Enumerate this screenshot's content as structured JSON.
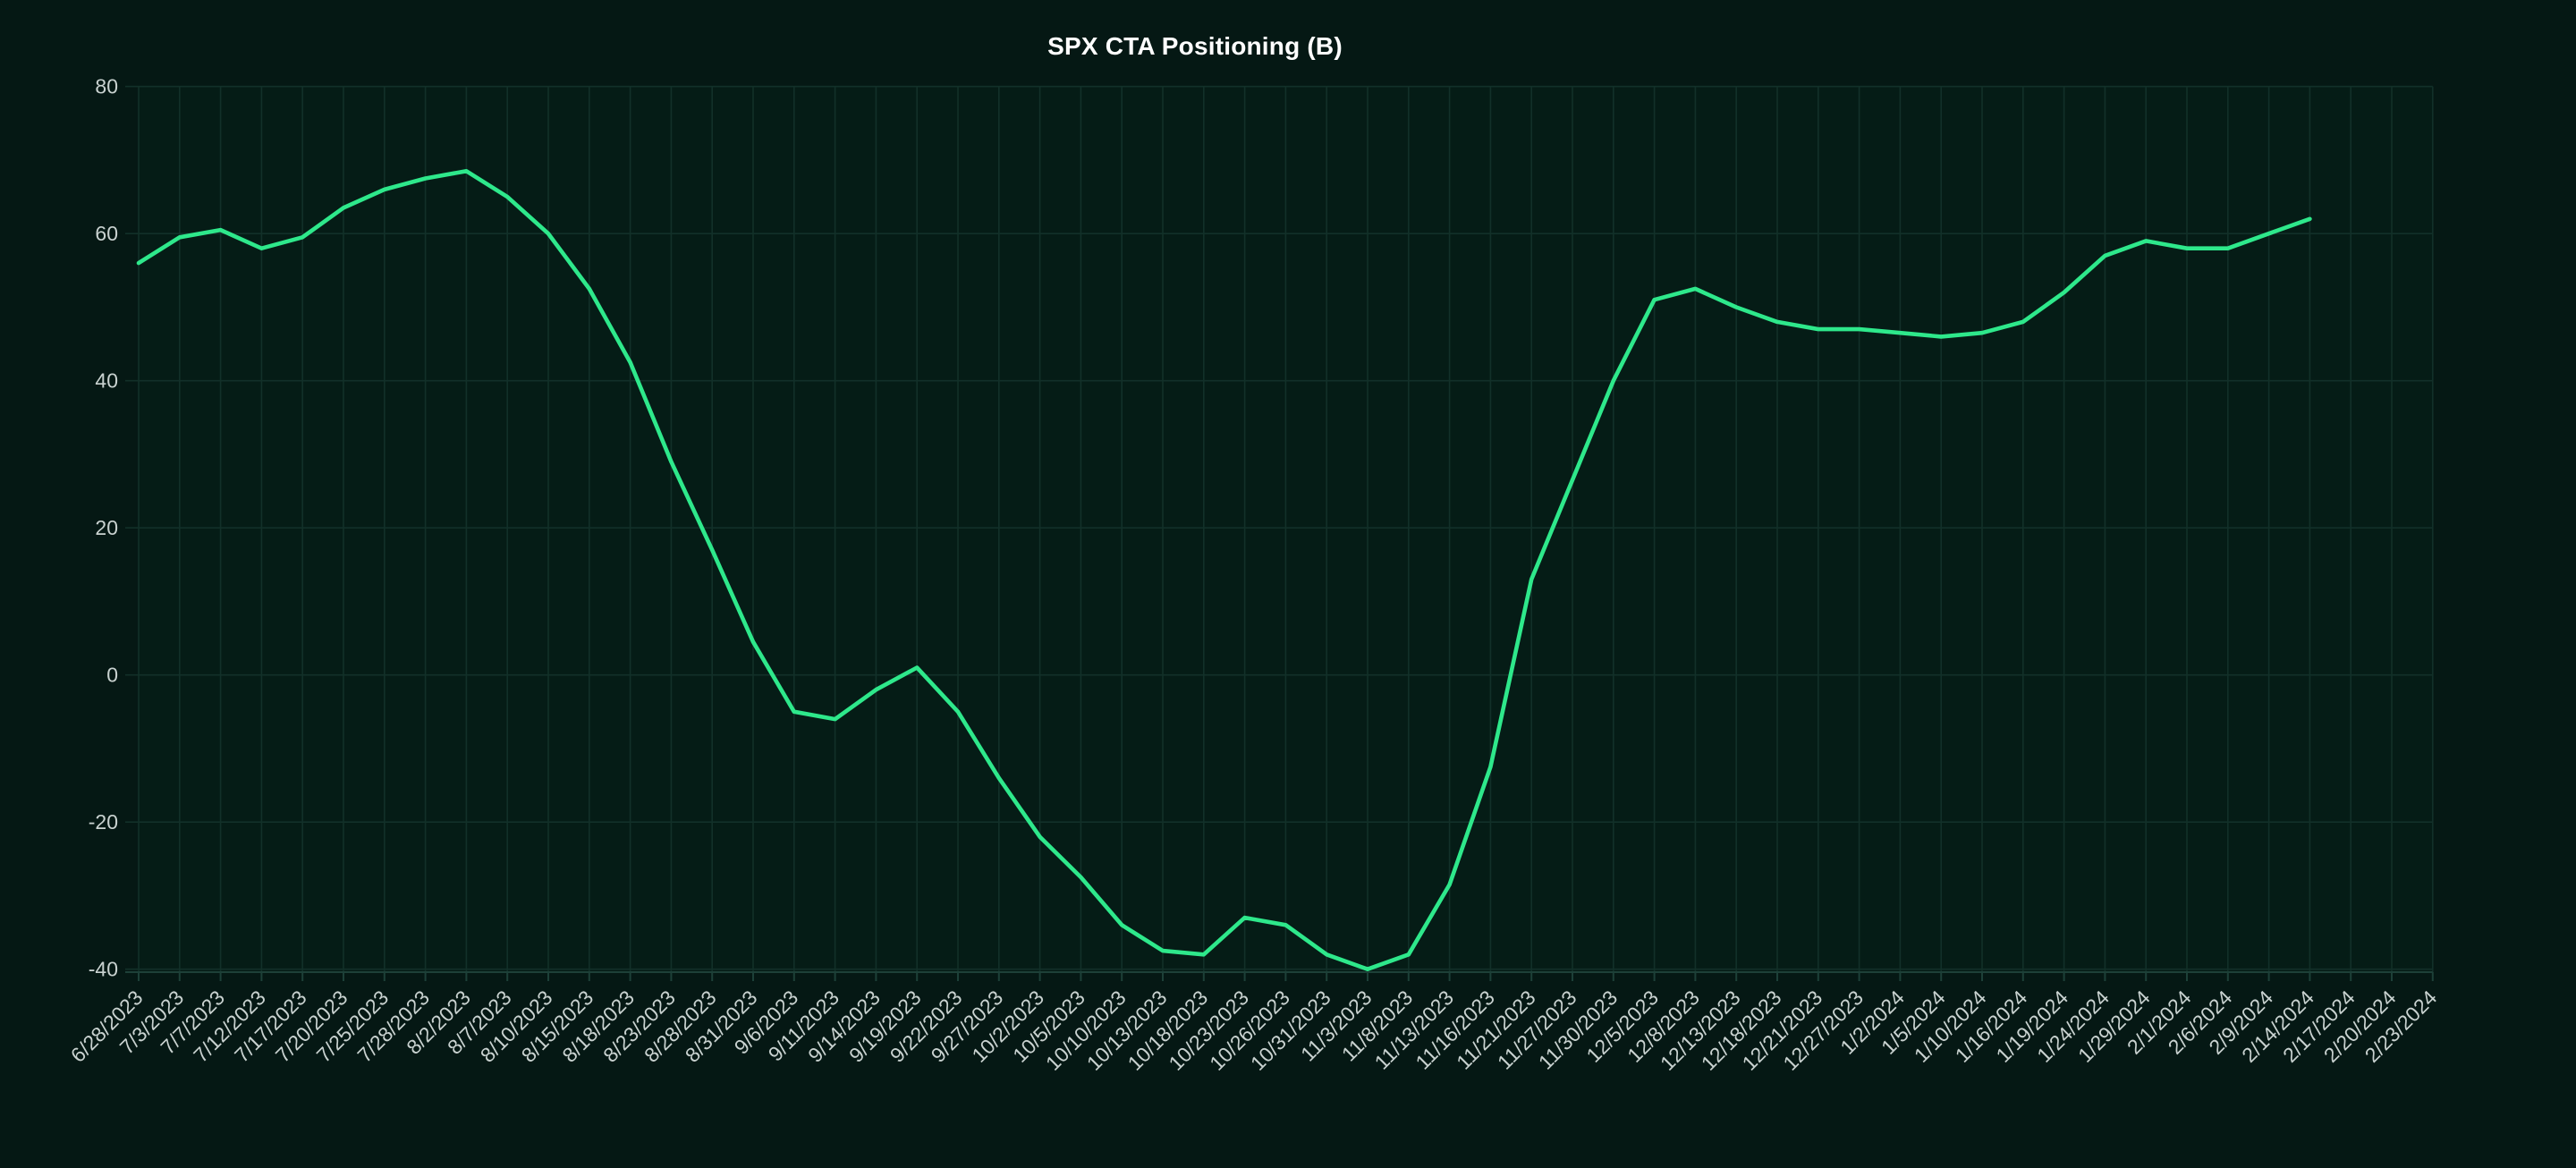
{
  "page": {
    "kind": "financial-chart-screenshot"
  },
  "colors": {
    "background": "#051814",
    "plot_tint": "rgba(46,232,139,0.018)",
    "gridline": "#123029",
    "axis_line": "#1d4038",
    "tick_label": "#c9d2d0",
    "title": "#ffffff",
    "line": "#2ee88b"
  },
  "chart_data": {
    "type": "line",
    "title": "SPX CTA Positioning (B)",
    "xlabel": "",
    "ylabel": "",
    "ylim": [
      -40,
      80
    ],
    "yticks": [
      80,
      60,
      40,
      20,
      0,
      -20,
      -40
    ],
    "grid": true,
    "legend": "none",
    "x_tick_rotation_deg": -45,
    "series_name": "SPX CTA Positioning (B)",
    "categories": [
      "6/28/2023",
      "7/3/2023",
      "7/7/2023",
      "7/12/2023",
      "7/17/2023",
      "7/20/2023",
      "7/25/2023",
      "7/28/2023",
      "8/2/2023",
      "8/7/2023",
      "8/10/2023",
      "8/15/2023",
      "8/18/2023",
      "8/23/2023",
      "8/28/2023",
      "8/31/2023",
      "9/6/2023",
      "9/11/2023",
      "9/14/2023",
      "9/19/2023",
      "9/22/2023",
      "9/27/2023",
      "10/2/2023",
      "10/5/2023",
      "10/10/2023",
      "10/13/2023",
      "10/18/2023",
      "10/23/2023",
      "10/26/2023",
      "10/31/2023",
      "11/3/2023",
      "11/8/2023",
      "11/13/2023",
      "11/16/2023",
      "11/21/2023",
      "11/27/2023",
      "11/30/2023",
      "12/5/2023",
      "12/8/2023",
      "12/13/2023",
      "12/18/2023",
      "12/21/2023",
      "12/27/2023",
      "1/2/2024",
      "1/5/2024",
      "1/10/2024",
      "1/16/2024",
      "1/19/2024",
      "1/24/2024",
      "1/29/2024",
      "2/1/2024",
      "2/6/2024",
      "2/9/2024",
      "2/14/2024",
      "2/17/2024",
      "2/20/2024",
      "2/23/2024"
    ],
    "values": [
      56,
      59.5,
      60.5,
      58,
      59.5,
      63.5,
      66,
      67.5,
      68.5,
      65,
      60,
      52.5,
      42.5,
      29,
      17,
      4.5,
      -5,
      -6,
      -2,
      1,
      -5,
      -14,
      -22,
      -27.5,
      -34,
      -37.5,
      -38,
      -33,
      -34,
      -38,
      -40,
      -38,
      -28.5,
      -12.5,
      13,
      26.5,
      40,
      51,
      52.5,
      50,
      48,
      47,
      47,
      46.5,
      46,
      46.5,
      48,
      52,
      57,
      59,
      58,
      58,
      60,
      62,
      null,
      null,
      null
    ]
  }
}
